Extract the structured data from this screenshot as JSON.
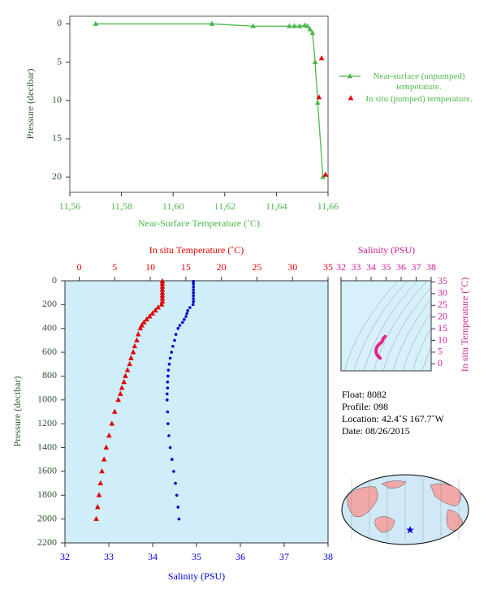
{
  "chart_data": [
    {
      "type": "line",
      "xlabel": "Near-Surface Temperature (˚C)",
      "ylabel": "Pressure (decibar)",
      "xlim": [
        11.56,
        11.66
      ],
      "xticks": [
        {
          "value": 11.56,
          "label": "11,56"
        },
        {
          "value": 11.58,
          "label": "11,58"
        },
        {
          "value": 11.6,
          "label": "11,60"
        },
        {
          "value": 11.62,
          "label": "11,62"
        },
        {
          "value": 11.64,
          "label": "11,64"
        },
        {
          "value": 11.66,
          "label": "11,66"
        }
      ],
      "ylim": [
        -1,
        22
      ],
      "y_reversed": true,
      "yticks": [
        0,
        5,
        10,
        15,
        20
      ],
      "series": [
        {
          "name": "Near-surface (unpumped) temperature.",
          "color": "#4cb84c",
          "line": true,
          "marker": "triangle",
          "x": [
            11.57,
            11.615,
            11.631,
            11.645,
            11.647,
            11.649,
            11.651,
            11.652,
            11.653,
            11.654,
            11.655,
            11.656,
            11.658
          ],
          "values": [
            0.0,
            0.0,
            0.3,
            0.3,
            0.3,
            0.3,
            0.2,
            0.3,
            0.7,
            1.2,
            5.0,
            10.3,
            20.0
          ]
        },
        {
          "name": "In situ (pumped) temperature.",
          "color": "#e00000",
          "line": false,
          "marker": "triangle",
          "x": [
            11.6575,
            11.6565,
            11.659
          ],
          "values": [
            4.5,
            9.6,
            19.7
          ]
        }
      ]
    },
    {
      "type": "scatter",
      "xlabel": "Salinity (PSU)",
      "x2label": "In situ Temperature (˚C)",
      "ylabel": "Pressure (decibar)",
      "xlim": [
        32,
        38
      ],
      "xticks": [
        32,
        33,
        34,
        35,
        36,
        37,
        38
      ],
      "x2lim": [
        -2,
        35
      ],
      "x2ticks": [
        0,
        5,
        10,
        15,
        20,
        25,
        30,
        35
      ],
      "ylim": [
        0,
        2200
      ],
      "y_reversed": true,
      "yticks": [
        0,
        200,
        400,
        600,
        800,
        1000,
        1200,
        1400,
        1600,
        1800,
        2000,
        2200
      ],
      "series": [
        {
          "color": "#e00000",
          "axis": "x2",
          "marker": "triangle",
          "x": [
            11.7,
            11.7,
            11.7,
            11.7,
            11.7,
            11.7,
            11.7,
            11.7,
            11.6,
            11.1,
            10.7,
            10.3,
            9.9,
            9.5,
            9.1,
            8.8,
            8.6,
            8.3,
            8.1,
            7.8,
            7.6,
            7.3,
            7.1,
            6.8,
            6.5,
            6.3,
            6.0,
            5.8,
            5.5,
            5.0,
            4.6,
            4.2,
            3.8,
            3.5,
            3.2,
            3.0,
            2.8,
            2.6,
            2.4
          ],
          "values": [
            5,
            25,
            50,
            75,
            100,
            125,
            150,
            175,
            200,
            225,
            250,
            275,
            300,
            325,
            350,
            375,
            400,
            450,
            500,
            550,
            600,
            650,
            700,
            750,
            800,
            850,
            900,
            950,
            1000,
            1100,
            1200,
            1300,
            1400,
            1500,
            1600,
            1700,
            1800,
            1900,
            2000
          ]
        },
        {
          "color": "#0000d0",
          "axis": "x",
          "marker": "circle",
          "x": [
            34.93,
            34.93,
            34.93,
            34.93,
            34.93,
            34.93,
            34.93,
            34.93,
            34.92,
            34.85,
            34.8,
            34.78,
            34.76,
            34.72,
            34.68,
            34.62,
            34.58,
            34.53,
            34.5,
            34.46,
            34.43,
            34.4,
            34.38,
            34.36,
            34.35,
            34.34,
            34.34,
            34.33,
            34.33,
            34.34,
            34.35,
            34.37,
            34.4,
            34.44,
            34.48,
            34.52,
            34.55,
            34.58,
            34.6
          ],
          "values": [
            5,
            25,
            50,
            75,
            100,
            125,
            150,
            175,
            200,
            225,
            250,
            275,
            300,
            325,
            350,
            375,
            400,
            450,
            500,
            550,
            600,
            650,
            700,
            750,
            800,
            850,
            900,
            950,
            1000,
            1100,
            1200,
            1300,
            1400,
            1500,
            1600,
            1700,
            1800,
            1900,
            2000
          ]
        }
      ]
    },
    {
      "type": "line",
      "xlabel": "Salinity (PSU)",
      "ylabel": "In situ Temperature (˚C)",
      "xlim": [
        32,
        38
      ],
      "xticks": [
        32,
        33,
        34,
        35,
        36,
        37,
        38
      ],
      "ylim": [
        -3,
        35.5
      ],
      "yticks": [
        0,
        5,
        10,
        15,
        20,
        25,
        30,
        35
      ],
      "series": [
        {
          "color": "#e6228c",
          "line": true,
          "x": [
            34.93,
            34.93,
            34.93,
            34.93,
            34.93,
            34.93,
            34.93,
            34.93,
            34.92,
            34.85,
            34.8,
            34.78,
            34.76,
            34.72,
            34.68,
            34.62,
            34.58,
            34.53,
            34.5,
            34.46,
            34.43,
            34.4,
            34.38,
            34.36,
            34.35,
            34.34,
            34.34,
            34.33,
            34.33,
            34.34,
            34.35,
            34.37,
            34.4,
            34.44,
            34.48,
            34.52,
            34.55,
            34.58,
            34.6
          ],
          "values": [
            11.7,
            11.7,
            11.7,
            11.7,
            11.7,
            11.7,
            11.7,
            11.7,
            11.6,
            11.1,
            10.7,
            10.3,
            9.9,
            9.5,
            9.1,
            8.8,
            8.6,
            8.3,
            8.1,
            7.8,
            7.6,
            7.3,
            7.1,
            6.8,
            6.5,
            6.3,
            6.0,
            5.8,
            5.5,
            5.0,
            4.6,
            4.2,
            3.8,
            3.5,
            3.2,
            3.0,
            2.8,
            2.6,
            2.4
          ]
        }
      ]
    }
  ],
  "info": [
    "Float:  8082",
    "Profile:  098",
    "Location:  42.4˚S  167.7˚W",
    "Date:  08/26/2015"
  ]
}
